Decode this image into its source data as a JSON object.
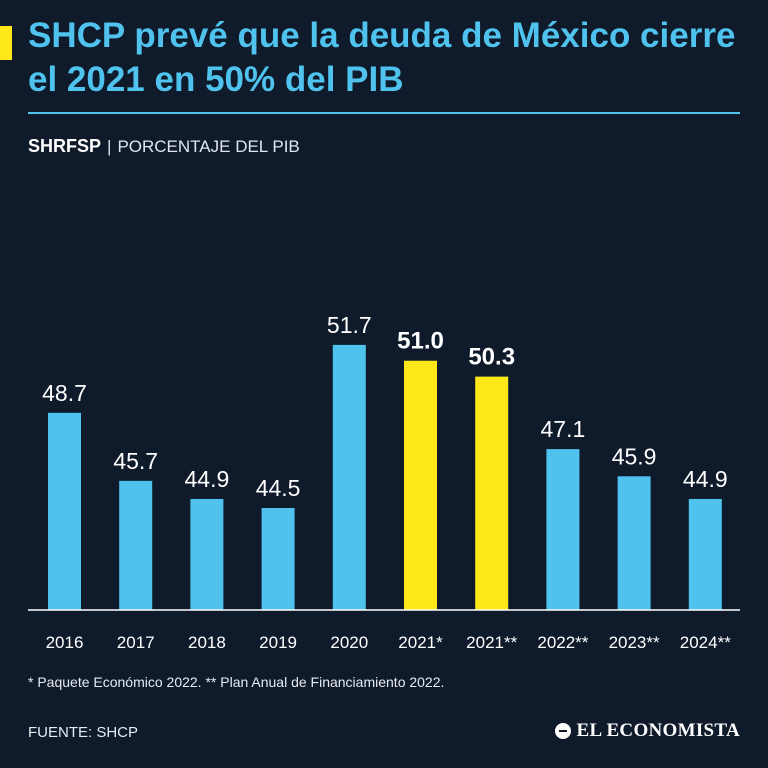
{
  "header": {
    "title": "SHCP prevé que la deuda de México cierre el 2021 en 50% del PIB",
    "subtitle_strong": "SHRFSP",
    "subtitle_sep": "|",
    "subtitle_unit": "PORCENTAJE DEL PIB"
  },
  "chart_data": {
    "type": "bar",
    "categories": [
      "2016",
      "2017",
      "2018",
      "2019",
      "2020",
      "2021*",
      "2021**",
      "2022**",
      "2023**",
      "2024**"
    ],
    "values": [
      48.7,
      45.7,
      44.9,
      44.5,
      51.7,
      51.0,
      50.3,
      47.1,
      45.9,
      44.9
    ],
    "value_labels": [
      "48.7",
      "45.7",
      "44.9",
      "44.5",
      "51.7",
      "51.0",
      "50.3",
      "47.1",
      "45.9",
      "44.9"
    ],
    "highlight": [
      false,
      false,
      false,
      false,
      false,
      true,
      true,
      false,
      false,
      false
    ],
    "colors": {
      "default": "#4fc3ee",
      "highlight": "#ffe81a",
      "label": "#ffffff",
      "axis": "#ffffff"
    },
    "baseline": 40,
    "ylim": [
      40,
      52
    ]
  },
  "footer": {
    "footnote": "* Paquete Económico 2022. ** Plan Anual de Financiamiento 2022.",
    "source": "FUENTE: SHCP",
    "logo_text": "EL ECONOMISTA"
  }
}
